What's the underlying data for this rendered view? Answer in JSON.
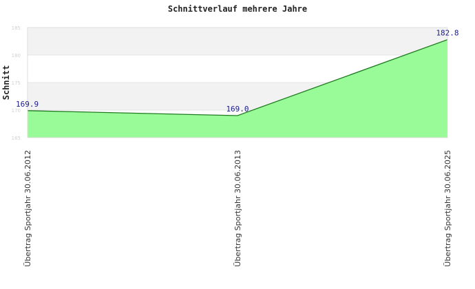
{
  "chart_data": {
    "type": "area",
    "title": "Schnittverlauf mehrere Jahre",
    "xlabel": "",
    "ylabel": "Schnitt",
    "categories": [
      "Übertrag Sportjahr 30.06.2012",
      "Übertrag Sportjahr 30.06.2013",
      "Übertrag Sportjahr 30.06.2025"
    ],
    "values": [
      169.9,
      169.0,
      182.8
    ],
    "data_labels": [
      "169.9",
      "169.0",
      "182.8"
    ],
    "ylim": [
      165,
      185
    ],
    "yticks": [
      165,
      170,
      175,
      180,
      185
    ],
    "grid": true,
    "colors": {
      "fill": "#98fb98",
      "line": "#1f7a1f",
      "band": "#f2f2f2",
      "label": "#1a1a8c"
    }
  }
}
